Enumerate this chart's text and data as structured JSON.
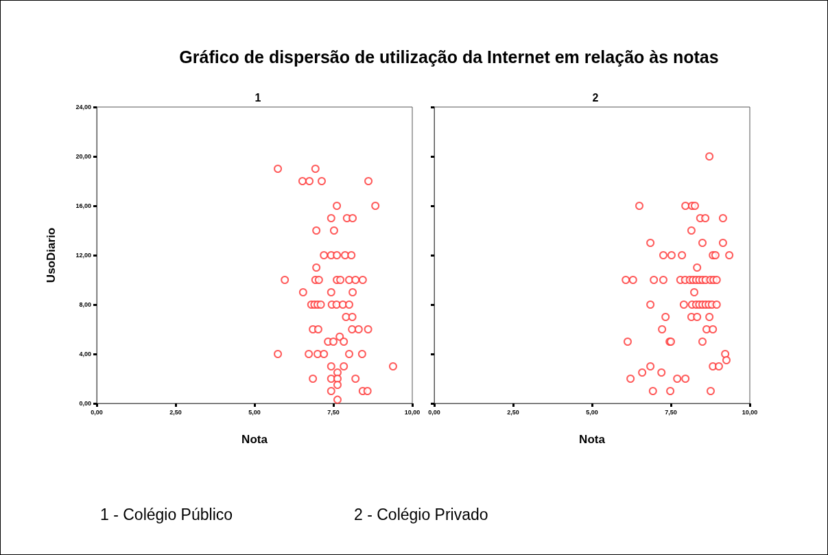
{
  "chart_data": [
    {
      "type": "scatter",
      "title": "Gráfico de dispersão de utilização da Internet em relação às notas",
      "subtitle": "1",
      "xlabel": "Nota",
      "ylabel": "UsoDiario",
      "marker": "circle",
      "annotations": [
        "1 - Colégio Público",
        "2 - Colégio Privado"
      ],
      "xlim": [
        0,
        10
      ],
      "xticks": [
        {
          "value": 0,
          "label": "0,00"
        },
        {
          "value": 2.5,
          "label": "2,50"
        },
        {
          "value": 5,
          "label": "5,00"
        },
        {
          "value": 7.5,
          "label": "7,50"
        },
        {
          "value": 10,
          "label": "10,00"
        }
      ],
      "ylim": [
        0,
        24
      ],
      "yticks": [
        {
          "value": 0,
          "label": "0,00"
        },
        {
          "value": 4,
          "label": "4,00"
        },
        {
          "value": 8,
          "label": "8,00"
        },
        {
          "value": 12,
          "label": "12,00"
        },
        {
          "value": 16,
          "label": "16,00"
        },
        {
          "value": 20,
          "label": "20,00"
        },
        {
          "value": 24,
          "label": "24,00"
        }
      ],
      "series": [
        {
          "color": "#ff3333",
          "x": [
            5.74,
            6.93,
            6.52,
            6.74,
            7.13,
            8.61,
            7.61,
            8.83,
            7.43,
            7.93,
            8.11,
            6.96,
            7.52,
            7.2,
            7.43,
            7.61,
            7.87,
            8.07,
            6.96,
            5.96,
            6.93,
            7.04,
            7.61,
            7.72,
            8.0,
            8.2,
            8.43,
            6.54,
            7.43,
            8.11,
            6.8,
            6.9,
            7.0,
            7.1,
            7.45,
            7.6,
            7.8,
            8.0,
            7.9,
            8.1,
            6.85,
            7.02,
            8.09,
            8.3,
            8.6,
            7.7,
            7.33,
            7.5,
            7.83,
            5.74,
            6.72,
            7.0,
            7.2,
            8.0,
            8.41,
            7.43,
            7.83,
            9.39,
            7.63,
            6.85,
            7.43,
            7.63,
            8.2,
            7.63,
            7.43,
            8.43,
            8.58,
            7.63
          ],
          "values": [
            19,
            19,
            18,
            18,
            18,
            18,
            16,
            16,
            15,
            15,
            15,
            14,
            14,
            12,
            12,
            12,
            12,
            12,
            11,
            10,
            10,
            10,
            10,
            10,
            10,
            10,
            10,
            9,
            9,
            9,
            8,
            8,
            8,
            8,
            8,
            8,
            8,
            8,
            7,
            7,
            6,
            6,
            6,
            6,
            6,
            5.4,
            5,
            5,
            5,
            4,
            4,
            4,
            4,
            4,
            4,
            3,
            3,
            3,
            2.5,
            2,
            2,
            2,
            2,
            1.5,
            1,
            1,
            1,
            0.3
          ]
        }
      ]
    },
    {
      "type": "scatter",
      "subtitle": "2",
      "xlabel": "Nota",
      "marker": "circle",
      "tick_labels": "x",
      "xlim": [
        0,
        10
      ],
      "xticks": [
        {
          "value": 0,
          "label": "0,00"
        },
        {
          "value": 2.5,
          "label": "2,50"
        },
        {
          "value": 5,
          "label": "5,00"
        },
        {
          "value": 7.5,
          "label": "7,50"
        },
        {
          "value": 10,
          "label": "10,00"
        }
      ],
      "ylim": [
        0,
        24
      ],
      "yticks": [
        {
          "value": 0,
          "label": null
        },
        {
          "value": 4,
          "label": null
        },
        {
          "value": 8,
          "label": null
        },
        {
          "value": 12,
          "label": null
        },
        {
          "value": 16,
          "label": null
        },
        {
          "value": 20,
          "label": null
        },
        {
          "value": 24,
          "label": null
        }
      ],
      "series": [
        {
          "color": "#ff3333",
          "x": [
            8.72,
            6.5,
            7.96,
            8.17,
            8.26,
            8.43,
            8.59,
            9.15,
            8.15,
            6.85,
            8.5,
            9.15,
            7.26,
            7.52,
            7.85,
            8.83,
            8.91,
            9.35,
            8.33,
            6.07,
            6.3,
            6.96,
            7.26,
            7.8,
            7.95,
            8.1,
            8.2,
            8.3,
            8.4,
            8.5,
            8.6,
            8.75,
            8.85,
            8.95,
            8.24,
            6.85,
            7.91,
            8.17,
            8.3,
            8.4,
            8.5,
            8.6,
            8.7,
            8.8,
            8.95,
            7.33,
            8.15,
            8.33,
            8.72,
            7.22,
            8.63,
            8.83,
            6.13,
            7.46,
            7.5,
            8.5,
            9.22,
            9.26,
            6.85,
            8.83,
            9.02,
            6.59,
            7.2,
            6.22,
            7.7,
            7.96,
            6.93,
            7.48,
            8.76
          ],
          "values": [
            20,
            16,
            16,
            16,
            16,
            15,
            15,
            15,
            14,
            13,
            13,
            13,
            12,
            12,
            12,
            12,
            12,
            12,
            11,
            10,
            10,
            10,
            10,
            10,
            10,
            10,
            10,
            10,
            10,
            10,
            10,
            10,
            10,
            10,
            9,
            8,
            8,
            8,
            8,
            8,
            8,
            8,
            8,
            8,
            8,
            7,
            7,
            7,
            7,
            6,
            6,
            6,
            5,
            5,
            5,
            5,
            4,
            3.5,
            3,
            3,
            3,
            2.5,
            2.5,
            2,
            2,
            2,
            1,
            1,
            1
          ]
        }
      ]
    }
  ]
}
